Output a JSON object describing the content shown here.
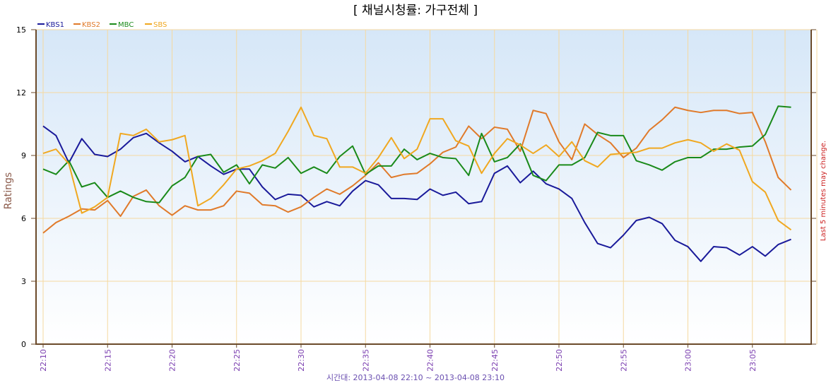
{
  "chart_data": {
    "type": "line",
    "title": "[ 채널시청률: 가구전체 ]",
    "ylabel": "Ratings",
    "xlabel": "시간대: 2013-04-08 22:10 ~ 2013-04-08 23:10",
    "right_note": "Last 5 minutes may change.",
    "ylim": [
      0,
      15
    ],
    "yticks": [
      0,
      3,
      6,
      9,
      12,
      15
    ],
    "xticks": [
      "22:10",
      "22:15",
      "22:20",
      "22:25",
      "22:30",
      "22:35",
      "22:40",
      "22:45",
      "22:50",
      "22:55",
      "23:00",
      "23:05"
    ],
    "x_start_minute": 0,
    "x_end_minute": 63,
    "grid": true,
    "legend": "top-left",
    "series": [
      {
        "name": "KBS1",
        "color": "#1a1a9a",
        "values": [
          10.4,
          9.95,
          8.65,
          9.8,
          9.05,
          8.95,
          9.3,
          9.85,
          10.05,
          9.6,
          9.2,
          8.7,
          8.95,
          8.5,
          8.1,
          8.35,
          8.35,
          7.5,
          6.9,
          7.15,
          7.1,
          6.55,
          6.8,
          6.6,
          7.3,
          7.8,
          7.6,
          6.95,
          6.95,
          6.9,
          7.4,
          7.1,
          7.25,
          6.7,
          6.8,
          8.15,
          8.5,
          7.7,
          8.25,
          7.65,
          7.4,
          6.95,
          5.8,
          4.8,
          4.6,
          5.2,
          5.9,
          6.05,
          5.75,
          4.95,
          4.65,
          3.95,
          4.65,
          4.6,
          4.25,
          4.65,
          4.2,
          4.75,
          5.0
        ]
      },
      {
        "name": "KBS2",
        "color": "#e07a2a",
        "values": [
          5.3,
          5.8,
          6.1,
          6.45,
          6.4,
          6.85,
          6.1,
          7.05,
          7.35,
          6.6,
          6.15,
          6.6,
          6.4,
          6.4,
          6.6,
          7.3,
          7.2,
          6.65,
          6.6,
          6.3,
          6.55,
          7.0,
          7.4,
          7.15,
          7.55,
          8.05,
          8.65,
          7.95,
          8.1,
          8.15,
          8.6,
          9.15,
          9.4,
          10.4,
          9.8,
          10.35,
          10.25,
          9.2,
          11.15,
          11.0,
          9.65,
          8.8,
          10.5,
          10.0,
          9.6,
          8.9,
          9.35,
          10.2,
          10.7,
          11.3,
          11.15,
          11.05,
          11.15,
          11.15,
          11.0,
          11.05,
          9.65,
          7.95,
          7.35
        ]
      },
      {
        "name": "MBC",
        "color": "#1a8a1a",
        "values": [
          8.35,
          8.1,
          8.75,
          7.5,
          7.7,
          7.0,
          7.3,
          7.0,
          6.8,
          6.75,
          7.55,
          7.95,
          8.95,
          9.05,
          8.2,
          8.55,
          7.65,
          8.55,
          8.4,
          8.9,
          8.15,
          8.45,
          8.15,
          8.95,
          9.45,
          8.1,
          8.5,
          8.5,
          9.3,
          8.8,
          9.1,
          8.9,
          8.85,
          8.05,
          10.05,
          8.7,
          8.9,
          9.55,
          8.05,
          7.8,
          8.55,
          8.55,
          8.9,
          10.1,
          9.95,
          9.95,
          8.75,
          8.55,
          8.3,
          8.7,
          8.9,
          8.9,
          9.3,
          9.3,
          9.4,
          9.45,
          10.0,
          11.35,
          11.3
        ]
      },
      {
        "name": "SBS",
        "color": "#f0a820",
        "values": [
          9.1,
          9.3,
          8.6,
          6.25,
          6.55,
          7.0,
          10.05,
          9.95,
          10.25,
          9.65,
          9.75,
          9.95,
          6.6,
          6.95,
          7.6,
          8.35,
          8.5,
          8.75,
          9.1,
          10.15,
          11.3,
          9.95,
          9.8,
          8.45,
          8.45,
          8.15,
          8.9,
          9.85,
          8.85,
          9.3,
          10.75,
          10.75,
          9.7,
          9.45,
          8.15,
          9.1,
          9.8,
          9.5,
          9.1,
          9.5,
          8.95,
          9.65,
          8.75,
          8.45,
          9.05,
          9.1,
          9.15,
          9.35,
          9.35,
          9.6,
          9.75,
          9.6,
          9.2,
          9.55,
          9.25,
          7.75,
          7.25,
          5.9,
          5.45
        ]
      }
    ]
  }
}
